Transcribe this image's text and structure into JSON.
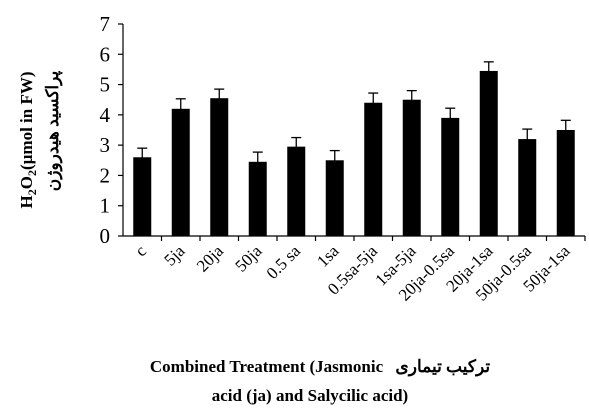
{
  "chart_data": {
    "type": "bar",
    "categories": [
      "c",
      "5ja",
      "20ja",
      "50ja",
      "0.5 sa",
      "1sa",
      "0.5sa-5ja",
      "1sa-5ja",
      "20ja-0.5sa",
      "20ja-1sa",
      "50ja-0.5sa",
      "50ja-1sa"
    ],
    "values": [
      2.6,
      4.2,
      4.55,
      2.45,
      2.95,
      2.5,
      4.4,
      4.5,
      3.9,
      5.45,
      3.2,
      3.5
    ],
    "errors": [
      0.3,
      0.33,
      0.3,
      0.32,
      0.3,
      0.32,
      0.32,
      0.3,
      0.32,
      0.3,
      0.33,
      0.32
    ],
    "ylim": [
      0,
      7
    ],
    "yticks": [
      "0",
      "1",
      "2",
      "3",
      "4",
      "5",
      "6",
      "7"
    ],
    "ylabel_formula": {
      "main": "H",
      "sub1": "2",
      "mid": "O",
      "sub2": "2",
      "tail": "(µmol in FW)"
    },
    "ylabel_persian": "پراکسید هیدروژن",
    "xlabel": {
      "persian": "ترکیب تیماری",
      "line1": "Combined Treatment (Jasmonic",
      "line2": "acid (ja) and Salycilic acid)"
    },
    "grid": false,
    "legend": "none",
    "colors": {
      "bar": "#000000",
      "axis": "#000000",
      "error": "#000000",
      "background": "#ffffff"
    }
  }
}
